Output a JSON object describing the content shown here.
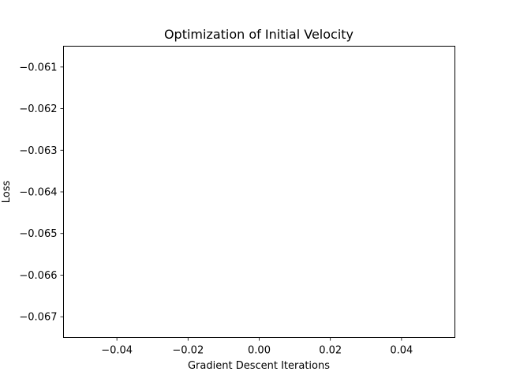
{
  "chart_data": {
    "type": "line",
    "title": "Optimization of Initial Velocity",
    "xlabel": "Gradient Descent Iterations",
    "ylabel": "Loss",
    "xlim": [
      -0.055,
      0.055
    ],
    "ylim": [
      -0.0675,
      -0.0605
    ],
    "x_ticks": [
      -0.04,
      -0.02,
      0.0,
      0.02,
      0.04
    ],
    "x_tick_labels": [
      "−0.04",
      "−0.02",
      "0.00",
      "0.02",
      "0.04"
    ],
    "y_ticks": [
      -0.061,
      -0.062,
      -0.063,
      -0.064,
      -0.065,
      -0.066,
      -0.067
    ],
    "y_tick_labels": [
      "−0.061",
      "−0.062",
      "−0.063",
      "−0.064",
      "−0.065",
      "−0.066",
      "−0.067"
    ],
    "grid": false,
    "series": [
      {
        "x": [],
        "y": [],
        "color": "#1f77b4"
      }
    ]
  }
}
